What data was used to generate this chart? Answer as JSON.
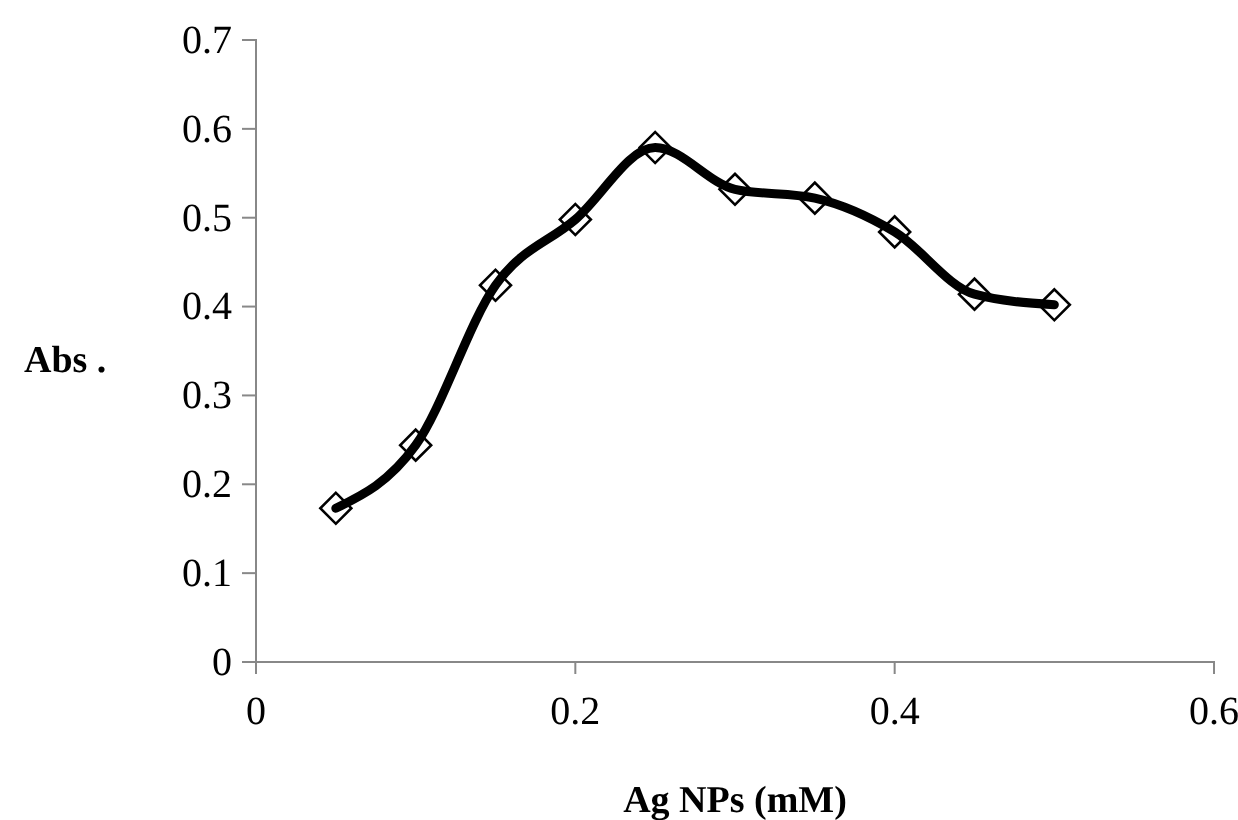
{
  "chart_data": {
    "type": "line",
    "xlabel": "Ag NPs (mM)",
    "ylabel": "Abs .",
    "x": [
      0.05,
      0.1,
      0.15,
      0.2,
      0.25,
      0.3,
      0.35,
      0.4,
      0.45,
      0.5
    ],
    "series": [
      {
        "color": "#000000",
        "values": [
          0.173,
          0.244,
          0.424,
          0.498,
          0.579,
          0.532,
          0.522,
          0.484,
          0.414,
          0.402
        ]
      }
    ],
    "xlim": [
      0,
      0.6
    ],
    "xticks": [
      0,
      0.2,
      0.4,
      0.6
    ],
    "ylim": [
      0,
      0.7
    ],
    "yticks": [
      0,
      0.1,
      0.2,
      0.3,
      0.4,
      0.5,
      0.6,
      0.7
    ],
    "grid": false,
    "marker": "diamond",
    "line_style": "solid"
  }
}
